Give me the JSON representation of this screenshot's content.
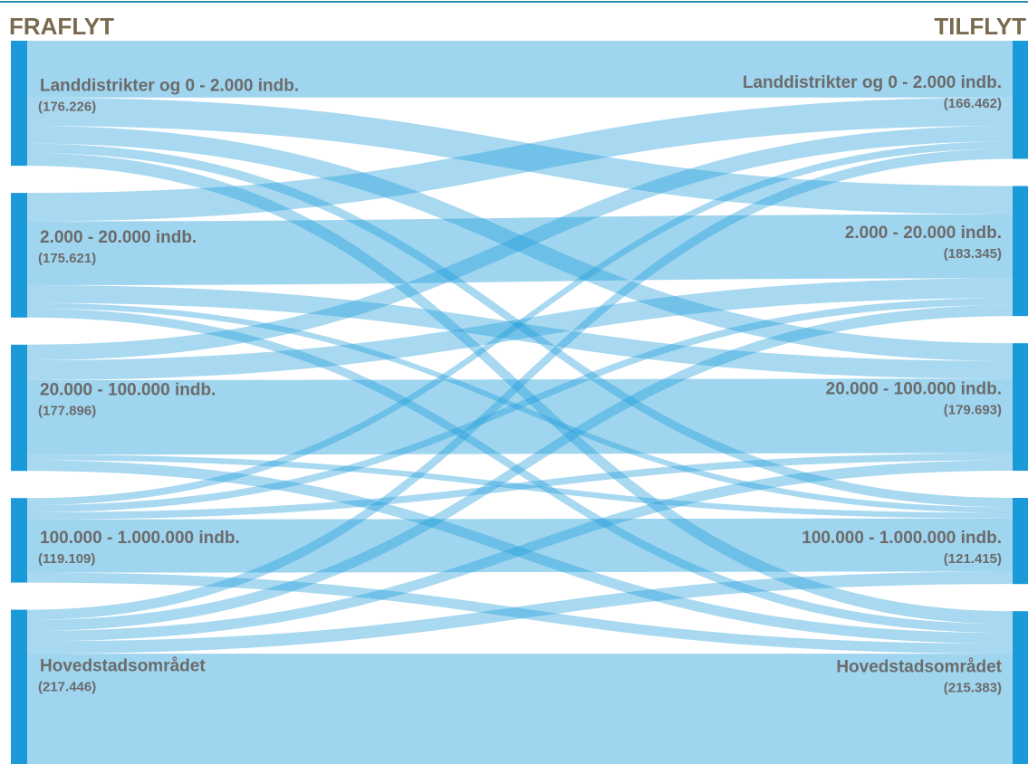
{
  "chart_data": {
    "type": "sankey",
    "left_title": "FRAFLYT",
    "right_title": "TILFLYT",
    "node_color": "#1a9ad9",
    "flow_color": "#1a9ad9",
    "sources": [
      {
        "label": "Landdistrikter og 0 - 2.000 indb.",
        "value": 176226,
        "value_label": "(176.226)"
      },
      {
        "label": "2.000 - 20.000 indb.",
        "value": 175621,
        "value_label": "(175.621)"
      },
      {
        "label": "20.000 - 100.000 indb.",
        "value": 177896,
        "value_label": "(177.896)"
      },
      {
        "label": "100.000 - 1.000.000 indb.",
        "value": 119109,
        "value_label": "(119.109)"
      },
      {
        "label": "Hovedstadsområdet",
        "value": 217446,
        "value_label": "(217.446)"
      }
    ],
    "targets": [
      {
        "label": "Landdistrikter og 0 - 2.000 indb.",
        "value": 166462,
        "value_label": "(166.462)"
      },
      {
        "label": "2.000 - 20.000 indb.",
        "value": 183345,
        "value_label": "(183.345)"
      },
      {
        "label": "20.000 - 100.000 indb.",
        "value": 179693,
        "value_label": "(179.693)"
      },
      {
        "label": "100.000 - 1.000.000 indb.",
        "value": 121415,
        "value_label": "(121.415)"
      },
      {
        "label": "Hovedstadsområdet",
        "value": 215383,
        "value_label": "(215.383)"
      }
    ],
    "flows": [
      [
        80000,
        40000,
        25000,
        13000,
        18226
      ],
      [
        40000,
        90000,
        25000,
        8000,
        12621
      ],
      [
        22000,
        28000,
        105000,
        8000,
        14896
      ],
      [
        10000,
        10000,
        10000,
        75000,
        14109
      ],
      [
        14462,
        15345,
        14693,
        17415,
        155531
      ]
    ]
  }
}
